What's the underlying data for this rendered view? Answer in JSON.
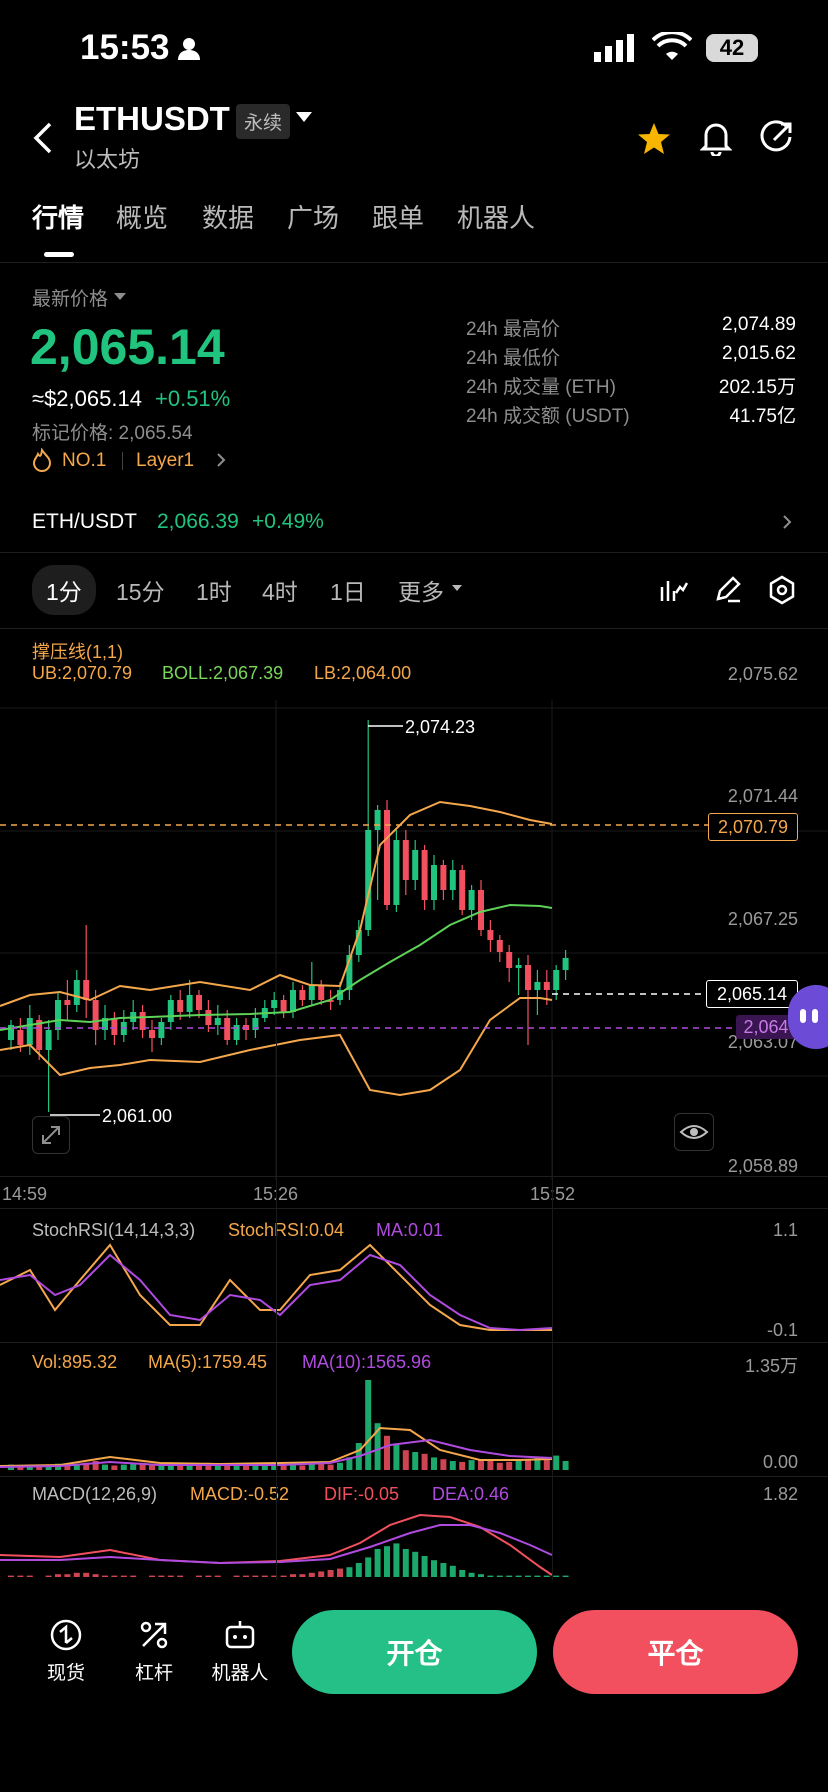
{
  "status": {
    "time": "15:53",
    "battery": "42"
  },
  "header": {
    "symbol": "ETHUSDT",
    "badge": "永续",
    "name": "以太坊"
  },
  "tabs": [
    "行情",
    "概览",
    "数据",
    "广场",
    "跟单",
    "机器人"
  ],
  "price": {
    "latest_label": "最新价格",
    "last": "2,065.14",
    "usd": "≈$2,065.14",
    "change": "+0.51%",
    "mark": "标记价格: 2,065.54",
    "rank": "NO.1",
    "tag": "Layer1"
  },
  "stats": [
    {
      "label": "24h 最高价",
      "value": "2,074.89"
    },
    {
      "label": "24h 最低价",
      "value": "2,015.62"
    },
    {
      "label": "24h 成交量 (ETH)",
      "value": "202.15万"
    },
    {
      "label": "24h 成交额 (USDT)",
      "value": "41.75亿"
    }
  ],
  "spot": {
    "pair": "ETH/USDT",
    "price": "2,066.39",
    "change": "+0.49%"
  },
  "timeframes": [
    "1分",
    "15分",
    "1时",
    "4时",
    "1日",
    "更多"
  ],
  "main_indicator": {
    "title": "撑压线(1,1)",
    "ub": "UB:2,070.79",
    "boll": "BOLL:2,067.39",
    "lb": "LB:2,064.00"
  },
  "price_axis": [
    "2,075.62",
    "2,071.44",
    "2,067.25",
    "2,063.07",
    "2,058.89"
  ],
  "time_axis": [
    "14:59",
    "15:26",
    "15:52"
  ],
  "markers": {
    "high": "2,074.23",
    "low": "2,061.00",
    "ub_tag": "2,070.79",
    "last_tag": "2,065.14",
    "lb_tag": "2,064"
  },
  "stochrsi": {
    "title": "StochRSI(14,14,3,3)",
    "val": "StochRSI:0.04",
    "ma": "MA:0.01",
    "top": "1.1",
    "bottom": "-0.1"
  },
  "volume": {
    "vol": "Vol:895.32",
    "ma5": "MA(5):1759.45",
    "ma10": "MA(10):1565.96",
    "top": "1.35万",
    "bottom": "0.00"
  },
  "macd": {
    "title": "MACD(12,26,9)",
    "macd": "MACD:-0.52",
    "dif": "DIF:-0.05",
    "dea": "DEA:0.46",
    "top": "1.82"
  },
  "bottom": {
    "spot": "现货",
    "leverage": "杠杆",
    "bot": "机器人",
    "open": "开仓",
    "close": "平仓"
  },
  "colors": {
    "up": "#21c47e",
    "down": "#f2505e",
    "accent": "#f4a74b",
    "purple": "#b04be0"
  }
}
